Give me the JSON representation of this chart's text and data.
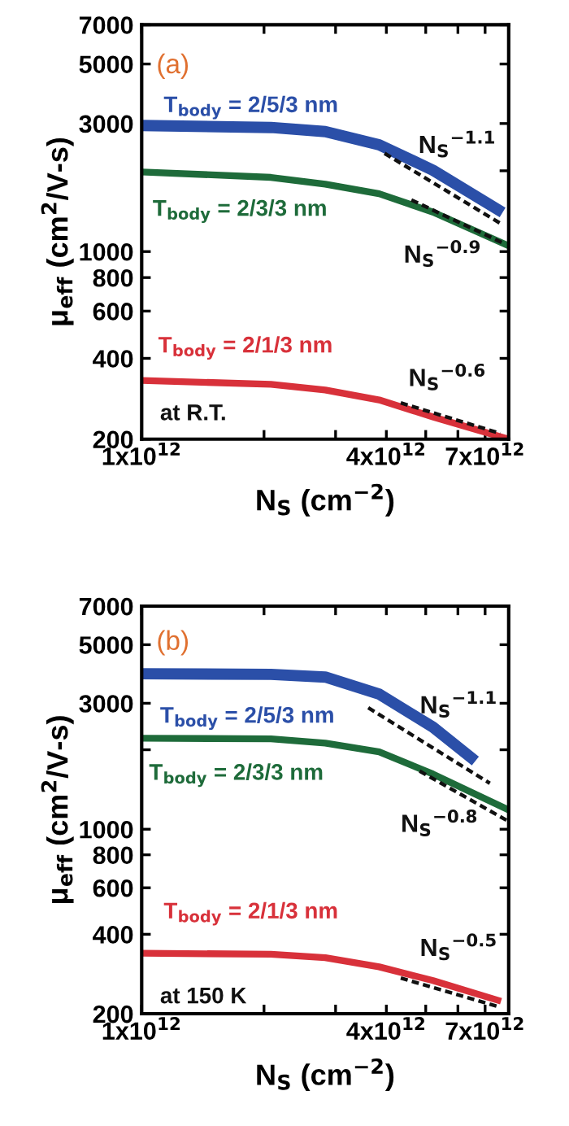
{
  "chart_data": [
    {
      "type": "line",
      "xlabel": "N$_{S}$ (cm$^{−2}$)",
      "ylabel": "μ$_{eff}$ (cm$^{2}$/V-s)",
      "log": "xy",
      "xlim": [
        1000000000000.0,
        8000000000000.0
      ],
      "ylim": [
        200,
        7000
      ],
      "xticks": [
        {
          "value": 1000000000000.0,
          "label": "1x10$^{12}$"
        },
        {
          "value": 2000000000000.0,
          "label": null
        },
        {
          "value": 3000000000000.0,
          "label": null
        },
        {
          "value": 4000000000000.0,
          "label": "4x10$^{12}$"
        },
        {
          "value": 5000000000000.0,
          "label": null
        },
        {
          "value": 6000000000000.0,
          "label": null
        },
        {
          "value": 7000000000000.0,
          "label": "7x10$^{12}$"
        }
      ],
      "yticks": [
        200,
        400,
        600,
        800,
        1000,
        {
          "value": 2000,
          "label": null
        },
        3000,
        5000,
        7000
      ],
      "grid": false,
      "marker": "none",
      "line_style": "solid",
      "series": [
        {
          "name": "T$_{body}$ = 2/5/3 nm",
          "color": "#2b4fa8",
          "x": [
            1000000000000.0,
            2080000000000.0,
            2830000000000.0,
            3840000000000.0,
            5210000000000.0,
            7520000000000.0
          ],
          "values": [
            2950,
            2900,
            2800,
            2500,
            2010,
            1435
          ]
        },
        {
          "name": "T$_{body}$ = 2/3/3 nm",
          "color": "#1e6b3a",
          "x": [
            1000000000000.0,
            2080000000000.0,
            2830000000000.0,
            3840000000000.0,
            5210000000000.0,
            8000000000000.0
          ],
          "values": [
            1980,
            1890,
            1784,
            1642,
            1403,
            1050
          ]
        },
        {
          "name": "T$_{body}$ = 2/1/3 nm",
          "color": "#d8313a",
          "x": [
            1000000000000.0,
            2080000000000.0,
            2830000000000.0,
            3840000000000.0,
            5210000000000.0,
            8000000000000.0
          ],
          "values": [
            331,
            320,
            305,
            280,
            242,
            200
          ]
        },
        {
          "type": "line",
          "line_style": "dashed",
          "color": "#111111",
          "x": [
            3960000000000.0,
            7760000000000.0
          ],
          "values": [
            2322,
            1254
          ]
        },
        {
          "type": "line",
          "line_style": "dashed",
          "color": "#111111",
          "x": [
            4610000000000.0,
            7860000000000.0
          ],
          "values": [
            1557,
            1065
          ]
        },
        {
          "type": "line",
          "line_style": "dashed",
          "color": "#111111",
          "x": [
            4340000000000.0,
            7630000000000.0
          ],
          "values": [
            273,
            210
          ]
        }
      ],
      "annotations": [
        "(a)",
        "at R.T.",
        "N$_{S}$$^{−1.1}$",
        "N$_{S}$$^{−0.9}$",
        "N$_{S}$$^{−0.6}$"
      ]
    },
    {
      "type": "line",
      "xlabel": "N$_{S}$ (cm$^{−2}$)",
      "ylabel": "μ$_{eff}$ (cm$^{2}$/V-s)",
      "log": "xy",
      "xlim": [
        1000000000000.0,
        8000000000000.0
      ],
      "ylim": [
        200,
        7000
      ],
      "xticks": [
        {
          "value": 1000000000000.0,
          "label": "1x10$^{12}$"
        },
        {
          "value": 2000000000000.0,
          "label": null
        },
        {
          "value": 3000000000000.0,
          "label": null
        },
        {
          "value": 4000000000000.0,
          "label": "4x10$^{12}$"
        },
        {
          "value": 5000000000000.0,
          "label": null
        },
        {
          "value": 6000000000000.0,
          "label": null
        },
        {
          "value": 7000000000000.0,
          "label": "7x10$^{12}$"
        }
      ],
      "yticks": [
        200,
        400,
        600,
        800,
        1000,
        {
          "value": 2000,
          "label": null
        },
        3000,
        5000,
        7000
      ],
      "grid": false,
      "marker": "none",
      "line_style": "solid",
      "series": [
        {
          "name": "T$_{body}$ = 2/5/3 nm",
          "color": "#2b4fa8",
          "x": [
            1000000000000.0,
            2080000000000.0,
            2830000000000.0,
            3840000000000.0,
            5210000000000.0,
            6460000000000.0
          ],
          "values": [
            3880,
            3860,
            3770,
            3250,
            2436,
            1870
          ]
        },
        {
          "name": "T$_{body}$ = 2/3/3 nm",
          "color": "#1e6b3a",
          "x": [
            1000000000000.0,
            2080000000000.0,
            2830000000000.0,
            3840000000000.0,
            5210000000000.0,
            8000000000000.0
          ],
          "values": [
            2212,
            2200,
            2118,
            1963,
            1618,
            1183
          ]
        },
        {
          "name": "T$_{body}$ = 2/1/3 nm",
          "color": "#d8313a",
          "x": [
            1000000000000.0,
            2080000000000.0,
            2830000000000.0,
            3840000000000.0,
            5210000000000.0,
            7520000000000.0
          ],
          "values": [
            339,
            336,
            326,
            301,
            267,
            225
          ]
        },
        {
          "type": "line",
          "line_style": "dashed",
          "color": "#111111",
          "x": [
            3610000000000.0,
            7190000000000.0
          ],
          "values": [
            2884,
            1493
          ]
        },
        {
          "type": "line",
          "line_style": "dashed",
          "color": "#111111",
          "x": [
            4830000000000.0,
            8000000000000.0
          ],
          "values": [
            1660,
            1070
          ]
        },
        {
          "type": "line",
          "line_style": "dashed",
          "color": "#111111",
          "x": [
            4340000000000.0,
            7520000000000.0
          ],
          "values": [
            273,
            213
          ]
        }
      ],
      "annotations": [
        "(b)",
        "at 150 K",
        "N$_{S}$$^{−1.1}$",
        "N$_{S}$$^{−0.8}$",
        "N$_{S}$$^{−0.5}$"
      ]
    }
  ]
}
